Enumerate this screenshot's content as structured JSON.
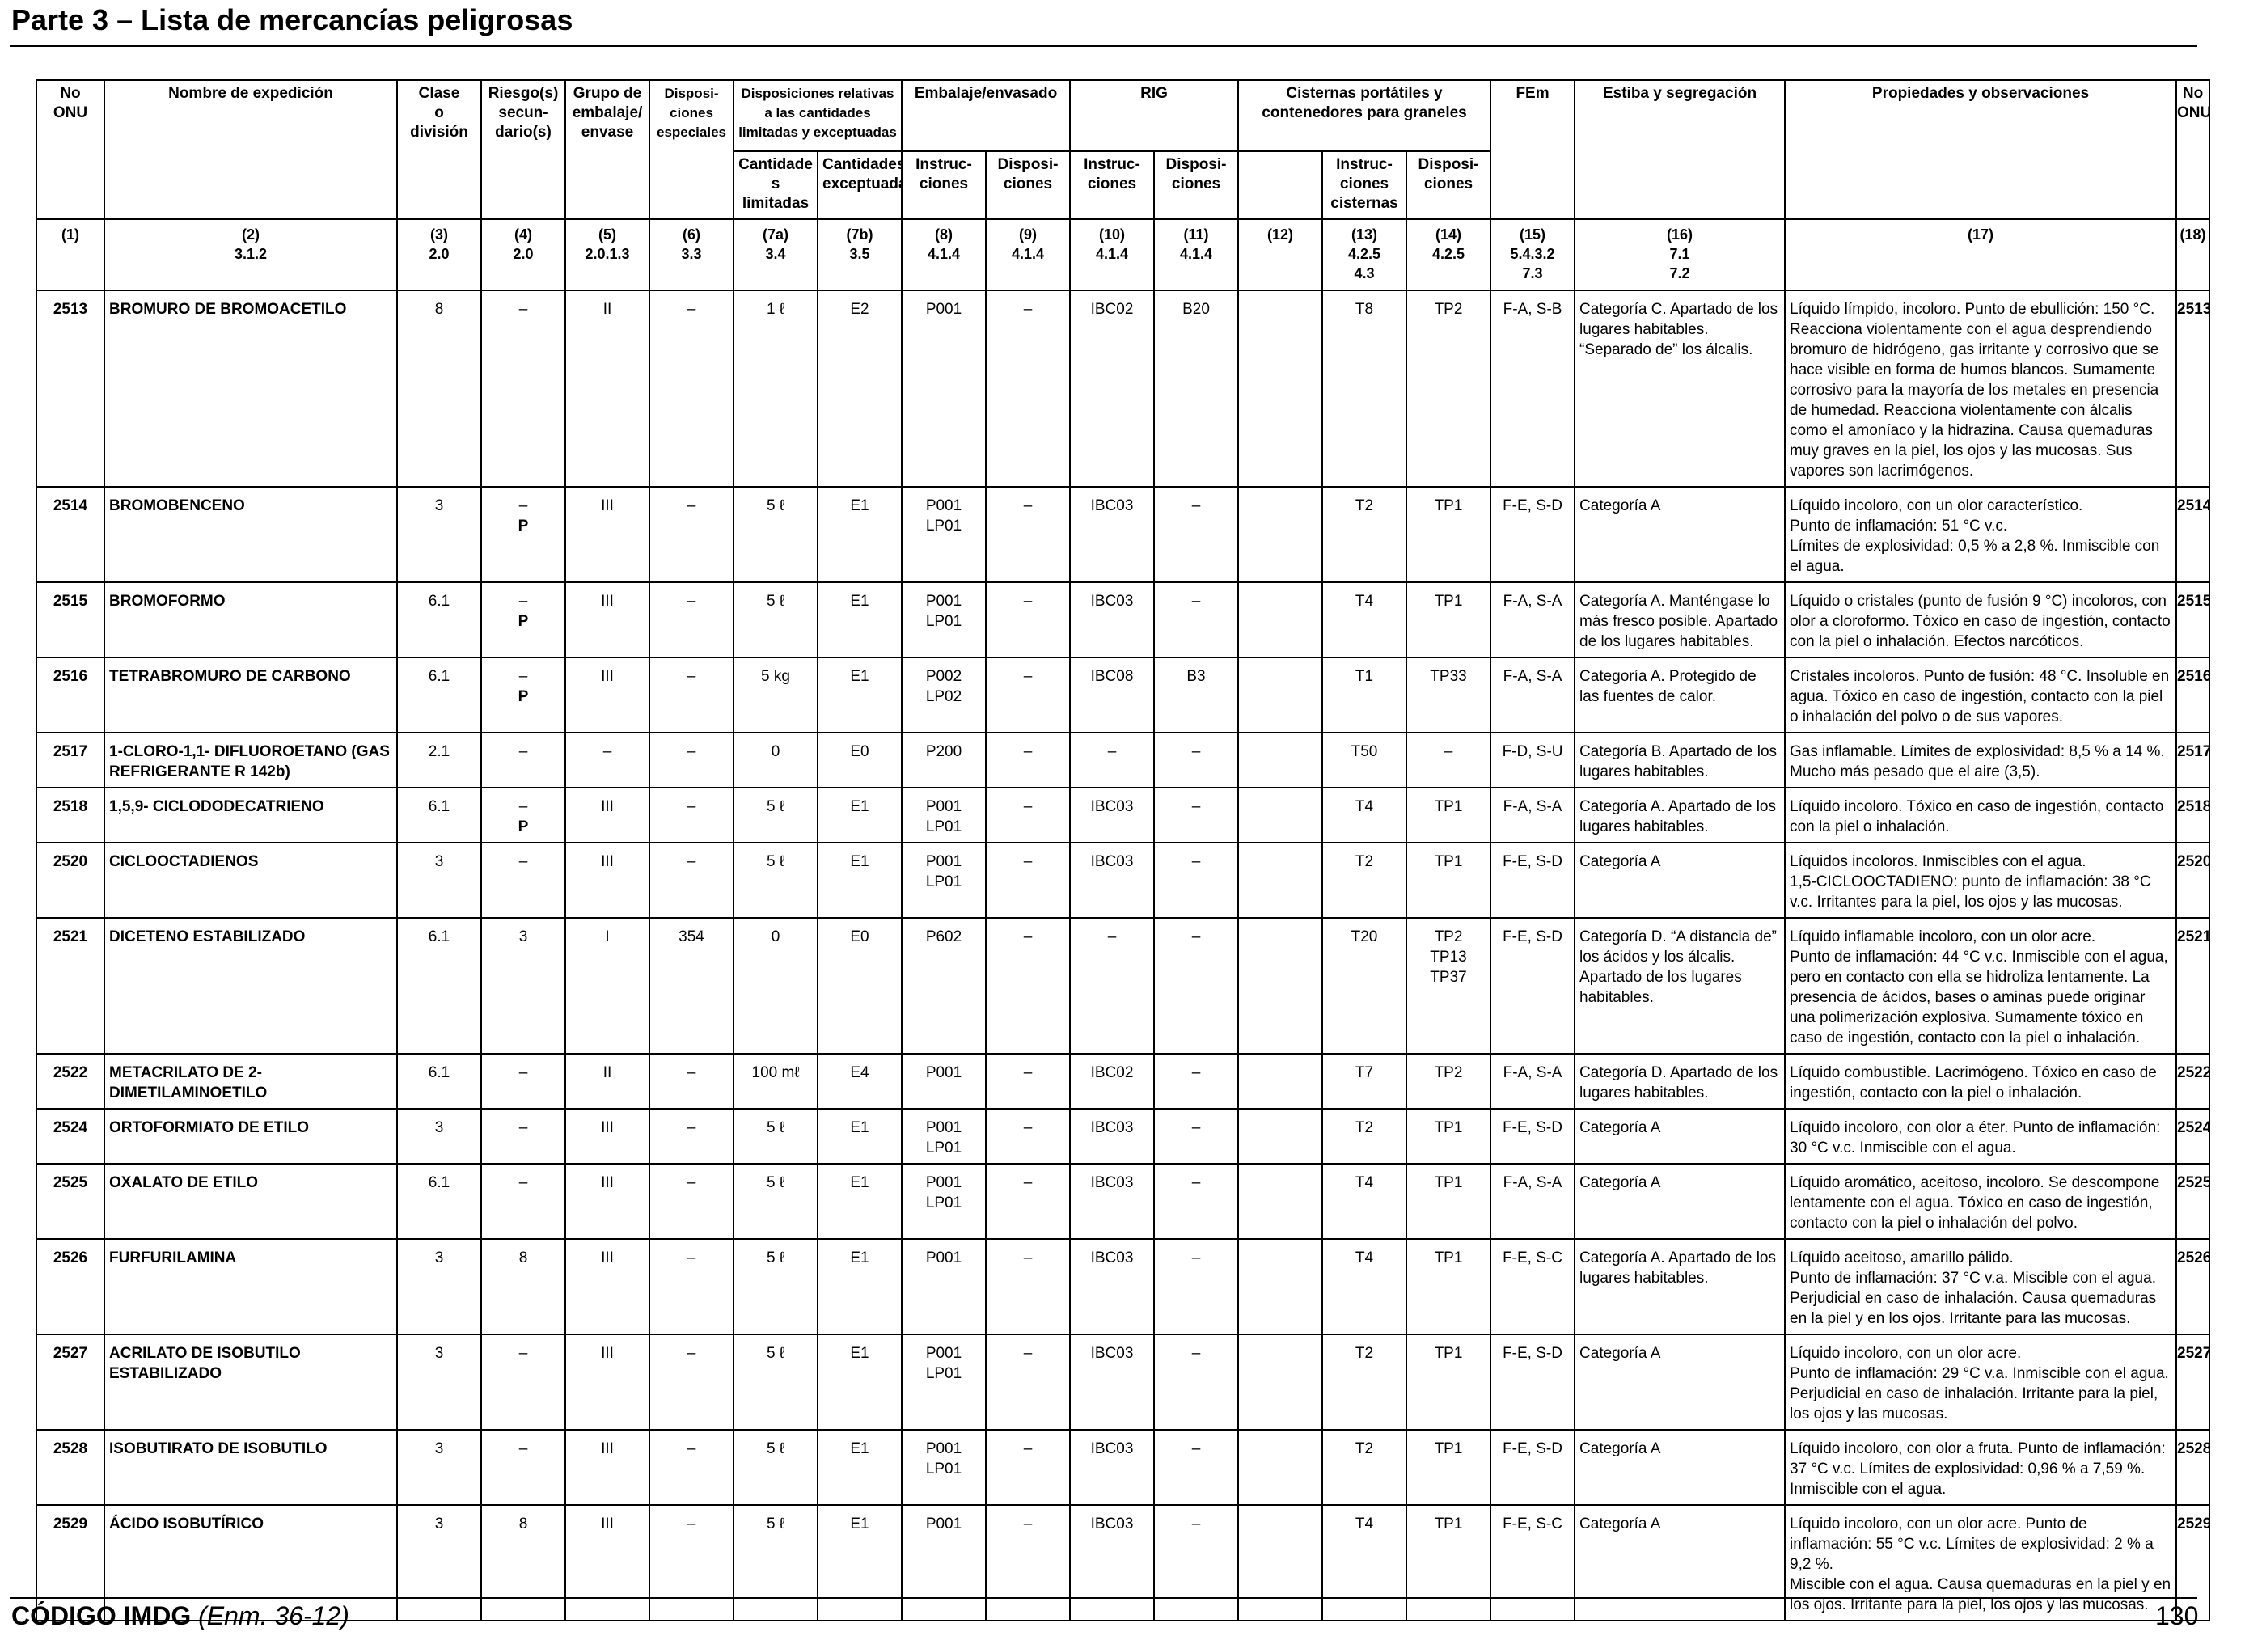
{
  "page": {
    "title": "Parte 3 – Lista de mercancías peligrosas",
    "footer_code": "CÓDIGO IMDG",
    "footer_amendment": "(Enm. 36-12)",
    "page_number": "130"
  },
  "headers": {
    "no_onu": "No\nONU",
    "nombre": "Nombre de expedición",
    "clase": "Clase\no\ndivisión",
    "riesgo": "Riesgo(s)\nsecun-\ndario(s)",
    "grupo": "Grupo de\nembalaje/\nenvase",
    "dispos_esp": "Disposi-\nciones\nespeciales",
    "cantidades": "Disposiciones relativas\na las cantidades\nlimitadas y exceptuadas",
    "embalaje": "Embalaje/envasado",
    "rig": "RIG",
    "cisternas": "Cisternas portátiles y\ncontenedores para graneles",
    "fem": "FEm",
    "estiba": "Estiba y segregación",
    "propiedades": "Propiedades y observaciones",
    "no_onu_2": "No\nONU",
    "sub_cant_lim": "Cantidade\ns limitadas",
    "sub_cant_exc": "Cantidades\nexceptuadas",
    "sub_emb_instr": "Instruc-\nciones",
    "sub_emb_disp": "Disposi-\nciones",
    "sub_rig_instr": "Instruc-\nciones",
    "sub_rig_disp": "Disposi-\nciones",
    "sub_cist_instr": "Instruc-\nciones\ncisternas",
    "sub_cist_disp": "Disposi-\nciones"
  },
  "column_refs": [
    "(1)",
    "(2)\n3.1.2",
    "(3)\n2.0",
    "(4)\n2.0",
    "(5)\n2.0.1.3",
    "(6)\n3.3",
    "(7a)\n3.4",
    "(7b)\n3.5",
    "(8)\n4.1.4",
    "(9)\n4.1.4",
    "(10)\n4.1.4",
    "(11)\n4.1.4",
    "(12)",
    "(13)\n4.2.5\n4.3",
    "(14)\n4.2.5",
    "(15)\n5.4.3.2\n7.3",
    "(16)\n7.1\n7.2",
    "(17)",
    "(18)"
  ],
  "rows": [
    {
      "un": "2513",
      "name": "BROMURO DE BROMOACETILO",
      "clase": "8",
      "riesgo": "–",
      "grupo": "II",
      "disp_esp": "–",
      "cant_lim": "1 ℓ",
      "cant_exc": "E2",
      "emb_instr": "P001",
      "emb_disp": "–",
      "rig_instr": "IBC02",
      "rig_disp": "B20",
      "c12": "",
      "cist_instr": "T8",
      "cist_disp": "TP2",
      "fem": "F-A, S-B",
      "estiba": "Categoría C. Apartado de los lugares habitables. “Separado de” los álcalis.",
      "prop": "Líquido límpido, incoloro. Punto de ebullición: 150 °C. Reacciona violentamente con el agua desprendiendo bromuro de hidrógeno, gas irritante y corrosivo que se hace visible en forma de humos blancos. Sumamente corrosivo para la mayoría de los metales en presencia de humedad. Reacciona violentamente con álcalis como el amoníaco y la hidrazina. Causa quemaduras muy graves en la piel, los ojos y las mucosas. Sus vapores son lacrimógenos."
    },
    {
      "un": "2514",
      "name": "BROMOBENCENO",
      "clase": "3",
      "riesgo": "–\nP",
      "grupo": "III",
      "disp_esp": "–",
      "cant_lim": "5 ℓ",
      "cant_exc": "E1",
      "emb_instr": "P001\nLP01",
      "emb_disp": "–",
      "rig_instr": "IBC03",
      "rig_disp": "–",
      "c12": "",
      "cist_instr": "T2",
      "cist_disp": "TP1",
      "fem": "F-E, S-D",
      "estiba": "Categoría A",
      "prop": "Líquido incoloro, con un olor característico.\nPunto de inflamación: 51 °C v.c.\nLímites de explosividad: 0,5 % a 2,8 %. Inmiscible con el agua."
    },
    {
      "un": "2515",
      "name": "BROMOFORMO",
      "clase": "6.1",
      "riesgo": "–\nP",
      "grupo": "III",
      "disp_esp": "–",
      "cant_lim": "5 ℓ",
      "cant_exc": "E1",
      "emb_instr": "P001\nLP01",
      "emb_disp": "–",
      "rig_instr": "IBC03",
      "rig_disp": "–",
      "c12": "",
      "cist_instr": "T4",
      "cist_disp": "TP1",
      "fem": "F-A, S-A",
      "estiba": "Categoría A. Manténgase lo más fresco posible. Apartado de los lugares habitables.",
      "prop": "Líquido o cristales (punto de fusión 9 °C) incoloros, con olor a cloroformo. Tóxico en caso de ingestión, contacto con la piel o inhalación. Efectos narcóticos."
    },
    {
      "un": "2516",
      "name": "TETRABROMURO DE CARBONO",
      "clase": "6.1",
      "riesgo": "–\nP",
      "grupo": "III",
      "disp_esp": "–",
      "cant_lim": "5 kg",
      "cant_exc": "E1",
      "emb_instr": "P002\nLP02",
      "emb_disp": "–",
      "rig_instr": "IBC08",
      "rig_disp": "B3",
      "c12": "",
      "cist_instr": "T1",
      "cist_disp": "TP33",
      "fem": "F-A, S-A",
      "estiba": "Categoría A. Protegido de las fuentes de calor.",
      "prop": "Cristales incoloros. Punto de fusión: 48 °C. Insoluble en agua. Tóxico en caso de ingestión, contacto con la piel o inhalación del polvo o de sus vapores."
    },
    {
      "un": "2517",
      "name": "1-CLORO-1,1- DIFLUOROETANO (GAS REFRIGERANTE R 142b)",
      "clase": "2.1",
      "riesgo": "–",
      "grupo": "–",
      "disp_esp": "–",
      "cant_lim": "0",
      "cant_exc": "E0",
      "emb_instr": "P200",
      "emb_disp": "–",
      "rig_instr": "–",
      "rig_disp": "–",
      "c12": "",
      "cist_instr": "T50",
      "cist_disp": "–",
      "fem": "F-D, S-U",
      "estiba": "Categoría B. Apartado de los lugares habitables.",
      "prop": "Gas inflamable. Límites de explosividad: 8,5 % a 14 %. Mucho más pesado que el aire (3,5)."
    },
    {
      "un": "2518",
      "name": "1,5,9- CICLODODECATRIENO",
      "clase": "6.1",
      "riesgo": "–\nP",
      "grupo": "III",
      "disp_esp": "–",
      "cant_lim": "5 ℓ",
      "cant_exc": "E1",
      "emb_instr": "P001\nLP01",
      "emb_disp": "–",
      "rig_instr": "IBC03",
      "rig_disp": "–",
      "c12": "",
      "cist_instr": "T4",
      "cist_disp": "TP1",
      "fem": "F-A, S-A",
      "estiba": "Categoría A. Apartado de los lugares habitables.",
      "prop": "Líquido incoloro. Tóxico en caso de ingestión, contacto con la piel o inhalación."
    },
    {
      "un": "2520",
      "name": "CICLOOCTADIENOS",
      "clase": "3",
      "riesgo": "–",
      "grupo": "III",
      "disp_esp": "–",
      "cant_lim": "5 ℓ",
      "cant_exc": "E1",
      "emb_instr": "P001\nLP01",
      "emb_disp": "–",
      "rig_instr": "IBC03",
      "rig_disp": "–",
      "c12": "",
      "cist_instr": "T2",
      "cist_disp": "TP1",
      "fem": "F-E, S-D",
      "estiba": "Categoría A",
      "prop": "Líquidos incoloros. Inmiscibles con el agua.\n1,5-CICLOOCTADIENO: punto de inflamación: 38 °C v.c. Irritantes para la piel, los ojos y las mucosas."
    },
    {
      "un": "2521",
      "name": "DICETENO ESTABILIZADO",
      "clase": "6.1",
      "riesgo": "3",
      "grupo": "I",
      "disp_esp": "354",
      "cant_lim": "0",
      "cant_exc": "E0",
      "emb_instr": "P602",
      "emb_disp": "–",
      "rig_instr": "–",
      "rig_disp": "–",
      "c12": "",
      "cist_instr": "T20",
      "cist_disp": "TP2\nTP13\nTP37",
      "fem": "F-E, S-D",
      "estiba": "Categoría D. “A distancia de” los ácidos y los álcalis. Apartado de los lugares habitables.",
      "prop": "Líquido inflamable incoloro, con un olor acre.\nPunto de inflamación: 44 °C v.c. Inmiscible con el agua, pero en contacto con ella se hidroliza lentamente. La presencia de ácidos, bases o aminas puede originar una polimerización explosiva. Sumamente tóxico en caso de ingestión, contacto con la piel o inhalación."
    },
    {
      "un": "2522",
      "name": "METACRILATO DE 2-DIMETILAMINOETILO",
      "clase": "6.1",
      "riesgo": "–",
      "grupo": "II",
      "disp_esp": "–",
      "cant_lim": "100 mℓ",
      "cant_exc": "E4",
      "emb_instr": "P001",
      "emb_disp": "–",
      "rig_instr": "IBC02",
      "rig_disp": "–",
      "c12": "",
      "cist_instr": "T7",
      "cist_disp": "TP2",
      "fem": "F-A, S-A",
      "estiba": "Categoría D. Apartado de los lugares habitables.",
      "prop": "Líquido combustible. Lacrimógeno. Tóxico en caso de ingestión, contacto con la piel o inhalación."
    },
    {
      "un": "2524",
      "name": "ORTOFORMIATO DE ETILO",
      "clase": "3",
      "riesgo": "–",
      "grupo": "III",
      "disp_esp": "–",
      "cant_lim": "5 ℓ",
      "cant_exc": "E1",
      "emb_instr": "P001\nLP01",
      "emb_disp": "–",
      "rig_instr": "IBC03",
      "rig_disp": "–",
      "c12": "",
      "cist_instr": "T2",
      "cist_disp": "TP1",
      "fem": "F-E, S-D",
      "estiba": "Categoría A",
      "prop": "Líquido incoloro, con olor a éter. Punto de inflamación: 30 °C v.c. Inmiscible con el agua."
    },
    {
      "un": "2525",
      "name": "OXALATO DE ETILO",
      "clase": "6.1",
      "riesgo": "–",
      "grupo": "III",
      "disp_esp": "–",
      "cant_lim": "5 ℓ",
      "cant_exc": "E1",
      "emb_instr": "P001\nLP01",
      "emb_disp": "–",
      "rig_instr": "IBC03",
      "rig_disp": "–",
      "c12": "",
      "cist_instr": "T4",
      "cist_disp": "TP1",
      "fem": "F-A, S-A",
      "estiba": "Categoría A",
      "prop": "Líquido aromático, aceitoso, incoloro. Se descompone lentamente con el agua. Tóxico en caso de ingestión, contacto con la piel o inhalación del polvo."
    },
    {
      "un": "2526",
      "name": "FURFURILAMINA",
      "clase": "3",
      "riesgo": "8",
      "grupo": "III",
      "disp_esp": "–",
      "cant_lim": "5 ℓ",
      "cant_exc": "E1",
      "emb_instr": "P001",
      "emb_disp": "–",
      "rig_instr": "IBC03",
      "rig_disp": "–",
      "c12": "",
      "cist_instr": "T4",
      "cist_disp": "TP1",
      "fem": "F-E, S-C",
      "estiba": "Categoría A. Apartado de los lugares habitables.",
      "prop": "Líquido aceitoso, amarillo pálido.\nPunto de inflamación: 37 °C v.a. Miscible con el agua. Perjudicial en caso de inhalación. Causa quemaduras en la piel y en los ojos. Irritante para las mucosas."
    },
    {
      "un": "2527",
      "name": "ACRILATO DE ISOBUTILO ESTABILIZADO",
      "clase": "3",
      "riesgo": "–",
      "grupo": "III",
      "disp_esp": "–",
      "cant_lim": "5 ℓ",
      "cant_exc": "E1",
      "emb_instr": "P001\nLP01",
      "emb_disp": "–",
      "rig_instr": "IBC03",
      "rig_disp": "–",
      "c12": "",
      "cist_instr": "T2",
      "cist_disp": "TP1",
      "fem": "F-E, S-D",
      "estiba": "Categoría A",
      "prop": "Líquido incoloro, con un olor acre.\nPunto de inflamación: 29 °C v.a. Inmiscible con el agua. Perjudicial en caso de inhalación. Irritante para la piel, los ojos y las mucosas."
    },
    {
      "un": "2528",
      "name": "ISOBUTIRATO DE ISOBUTILO",
      "clase": "3",
      "riesgo": "–",
      "grupo": "III",
      "disp_esp": "–",
      "cant_lim": "5 ℓ",
      "cant_exc": "E1",
      "emb_instr": "P001\nLP01",
      "emb_disp": "–",
      "rig_instr": "IBC03",
      "rig_disp": "–",
      "c12": "",
      "cist_instr": "T2",
      "cist_disp": "TP1",
      "fem": "F-E, S-D",
      "estiba": "Categoría A",
      "prop": "Líquido incoloro, con olor a fruta. Punto de inflamación: 37 °C v.c. Límites de explosividad: 0,96 % a 7,59 %. Inmiscible con el agua."
    },
    {
      "un": "2529",
      "name": "ÁCIDO ISOBUTÍRICO",
      "clase": "3",
      "riesgo": "8",
      "grupo": "III",
      "disp_esp": "–",
      "cant_lim": "5 ℓ",
      "cant_exc": "E1",
      "emb_instr": "P001",
      "emb_disp": "–",
      "rig_instr": "IBC03",
      "rig_disp": "–",
      "c12": "",
      "cist_instr": "T4",
      "cist_disp": "TP1",
      "fem": "F-E, S-C",
      "estiba": "Categoría A",
      "prop": "Líquido incoloro, con un olor acre. Punto de inflamación: 55 °C v.c. Límites de explosividad: 2 % a 9,2 %.\nMiscible con el agua. Causa quemaduras en la piel y en los ojos. Irritante para la piel, los ojos y las mucosas."
    }
  ]
}
